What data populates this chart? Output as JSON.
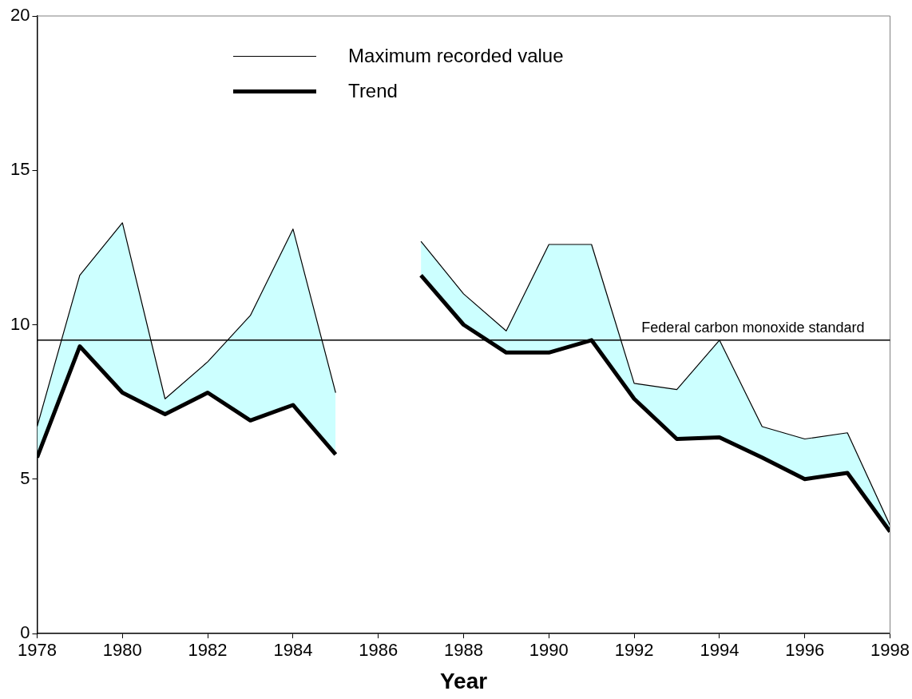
{
  "chart_data": {
    "type": "line",
    "xlabel": "Year",
    "x": [
      1978,
      1979,
      1980,
      1981,
      1982,
      1983,
      1984,
      1985,
      1986,
      1987,
      1988,
      1989,
      1990,
      1991,
      1992,
      1993,
      1994,
      1995,
      1996,
      1997,
      1998
    ],
    "series": [
      {
        "name": "Maximum recorded value",
        "color": "#000000",
        "values": [
          6.7,
          11.6,
          13.3,
          7.6,
          8.8,
          10.3,
          13.1,
          7.8,
          null,
          12.7,
          11.0,
          9.8,
          12.6,
          12.6,
          8.1,
          7.9,
          9.5,
          6.7,
          6.3,
          6.5,
          3.5
        ],
        "lower": [
          5.7,
          9.3,
          7.8,
          7.1,
          7.8,
          6.9,
          7.4,
          5.8,
          null,
          11.6,
          10.0,
          9.1,
          9.1,
          9.5,
          7.6,
          6.3,
          6.35,
          5.7,
          5.0,
          5.2,
          3.3
        ],
        "upper": [
          6.7,
          11.6,
          13.3,
          7.6,
          8.8,
          10.3,
          13.1,
          7.8,
          null,
          12.7,
          11.0,
          9.8,
          12.6,
          12.6,
          8.1,
          7.9,
          9.5,
          6.7,
          6.3,
          6.5,
          3.5
        ]
      },
      {
        "name": "Trend",
        "color": "#000000",
        "values": [
          5.7,
          9.3,
          7.8,
          7.1,
          7.8,
          6.9,
          7.4,
          5.8,
          null,
          11.6,
          10.0,
          9.1,
          9.1,
          9.5,
          7.6,
          6.3,
          6.35,
          5.7,
          5.0,
          5.2,
          3.3
        ]
      }
    ],
    "xlim": [
      1978,
      1998
    ],
    "xticks": [
      1978,
      1980,
      1982,
      1984,
      1986,
      1988,
      1990,
      1992,
      1994,
      1996,
      1998
    ],
    "ylim": [
      0,
      20
    ],
    "yticks": [
      0,
      5,
      10,
      15,
      20
    ],
    "ref_lines": [
      {
        "axis": "y",
        "value": 9.5,
        "label": "Federal carbon monoxide standard",
        "color": "#000000"
      }
    ],
    "legend": "top",
    "grid": false,
    "marker": "none"
  }
}
